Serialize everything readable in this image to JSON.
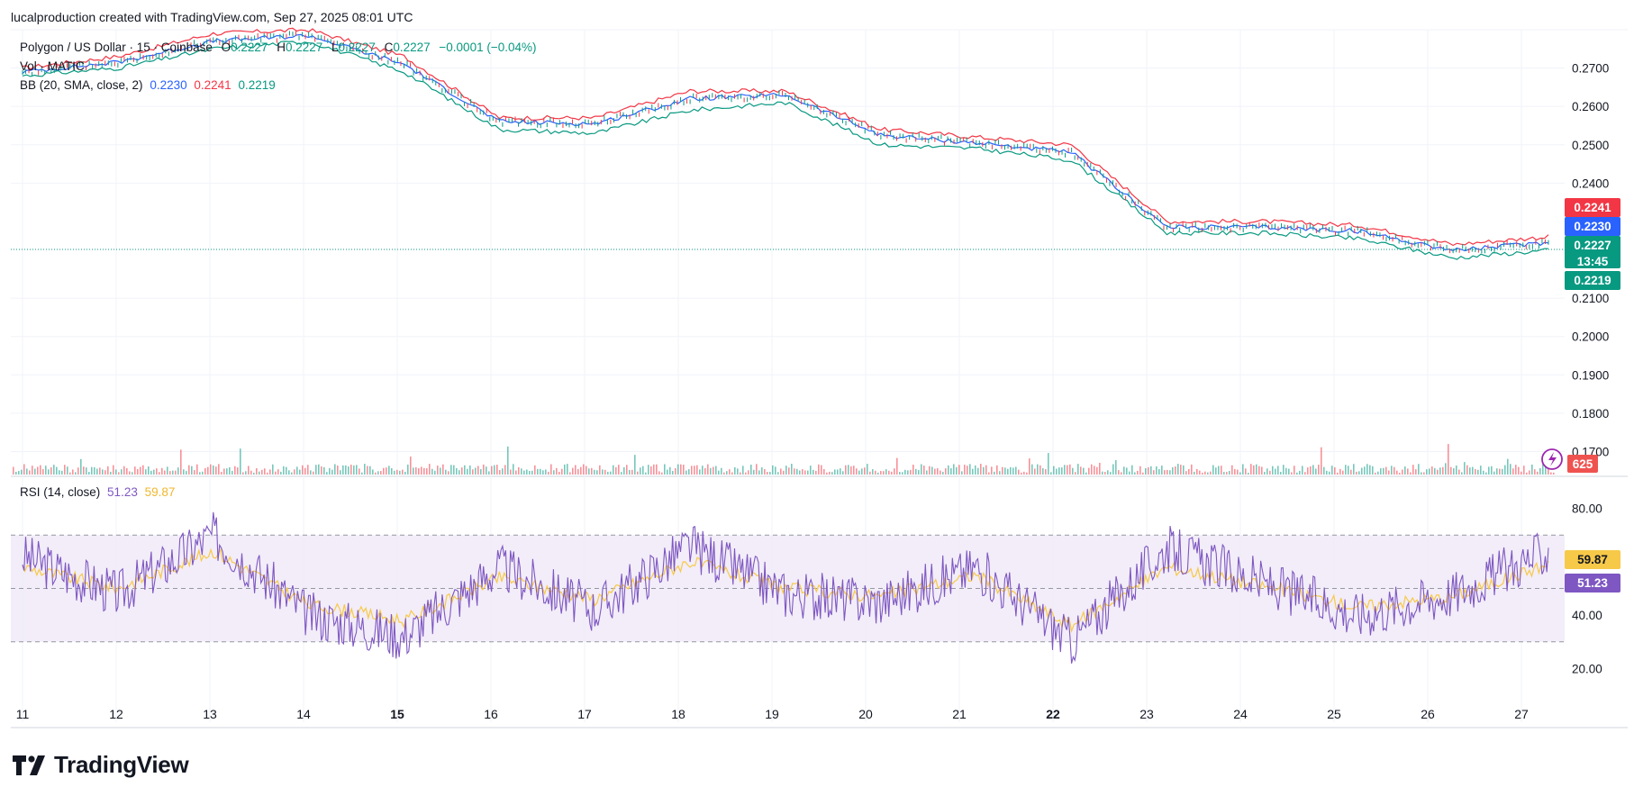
{
  "header": {
    "credit": "lucalproduction created with TradingView.com, Sep 27, 2025 08:01 UTC"
  },
  "legend": {
    "symbol": "Polygon / US Dollar · 15 · Coinbase",
    "o_label": "O",
    "o_value": "0.2227",
    "h_label": "H",
    "h_value": "0.2227",
    "l_label": "L",
    "l_value": "0.2227",
    "c_label": "C",
    "c_value": "0.2227",
    "change": "−0.0001 (−0.04%)",
    "volume": "Vol · MATIC",
    "bb_label": "BB (20, SMA, close, 2)",
    "bb_basis": "0.2230",
    "bb_upper": "0.2241",
    "bb_lower": "0.2219",
    "rsi_label": "RSI (14, close)",
    "rsi_value": "51.23",
    "rsi_ma": "59.87"
  },
  "price_axis": {
    "ticks": [
      "0.2700",
      "0.2600",
      "0.2500",
      "0.2400",
      "0.2100",
      "0.2000",
      "0.1900",
      "0.1800",
      "0.1700"
    ],
    "badges": [
      {
        "text": "0.2241",
        "color": "#f23645"
      },
      {
        "text": "0.2230",
        "color": "#2962ff"
      },
      {
        "text": "0.2227",
        "color": "#089981"
      },
      {
        "text": "13:45",
        "color": "#089981"
      },
      {
        "text": "0.2219",
        "color": "#089981"
      }
    ],
    "volume_badge": {
      "text": "625",
      "color": "#ef5350"
    }
  },
  "rsi_axis": {
    "ticks": [
      "80.00",
      "40.00",
      "20.00"
    ],
    "badges": [
      {
        "text": "59.87",
        "color": "#f7c948"
      },
      {
        "text": "51.23",
        "color": "#7e57c2"
      }
    ]
  },
  "time_axis": {
    "labels": [
      {
        "text": "11",
        "bold": false
      },
      {
        "text": "12",
        "bold": false
      },
      {
        "text": "13",
        "bold": false
      },
      {
        "text": "14",
        "bold": false
      },
      {
        "text": "15",
        "bold": true
      },
      {
        "text": "16",
        "bold": false
      },
      {
        "text": "17",
        "bold": false
      },
      {
        "text": "18",
        "bold": false
      },
      {
        "text": "19",
        "bold": false
      },
      {
        "text": "20",
        "bold": false
      },
      {
        "text": "21",
        "bold": false
      },
      {
        "text": "22",
        "bold": true
      },
      {
        "text": "23",
        "bold": false
      },
      {
        "text": "24",
        "bold": false
      },
      {
        "text": "25",
        "bold": false
      },
      {
        "text": "26",
        "bold": false
      },
      {
        "text": "27",
        "bold": false
      }
    ]
  },
  "logo": {
    "text": "TradingView"
  },
  "colors": {
    "up": "#089981",
    "down": "#f23645",
    "bb_basis": "#2962ff",
    "bb_upper": "#f23645",
    "bb_lower": "#089981",
    "rsi": "#7e57c2",
    "rsi_ma": "#f7c948",
    "rsi_band": "#ede7f6"
  },
  "chart_data": [
    {
      "type": "line",
      "title": "Polygon / US Dollar · 15 · Coinbase",
      "x": [
        "11",
        "12",
        "13",
        "14",
        "15",
        "16",
        "17",
        "18",
        "19",
        "20",
        "21",
        "22",
        "23",
        "24",
        "25",
        "26",
        "27"
      ],
      "series": [
        {
          "name": "BB upper",
          "values": [
            0.27,
            0.273,
            0.279,
            0.28,
            0.273,
            0.257,
            0.257,
            0.264,
            0.264,
            0.254,
            0.252,
            0.25,
            0.23,
            0.23,
            0.229,
            0.224,
            0.226
          ]
        },
        {
          "name": "BB basis",
          "values": [
            0.269,
            0.2715,
            0.277,
            0.2785,
            0.271,
            0.256,
            0.2555,
            0.262,
            0.263,
            0.2525,
            0.2505,
            0.248,
            0.2285,
            0.2285,
            0.2275,
            0.2225,
            0.2245
          ]
        },
        {
          "name": "BB lower",
          "values": [
            0.268,
            0.27,
            0.275,
            0.277,
            0.269,
            0.254,
            0.253,
            0.259,
            0.261,
            0.25,
            0.249,
            0.246,
            0.227,
            0.227,
            0.2255,
            0.2205,
            0.2225
          ]
        }
      ],
      "ylim": [
        0.164,
        0.28
      ]
    },
    {
      "type": "line",
      "title": "RSI (14, close)",
      "x": [
        "11",
        "12",
        "13",
        "14",
        "15",
        "16",
        "17",
        "18",
        "19",
        "20",
        "21",
        "22",
        "23",
        "24",
        "25",
        "26",
        "27"
      ],
      "series": [
        {
          "name": "RSI",
          "values": [
            62,
            48,
            70,
            40,
            32,
            58,
            42,
            66,
            48,
            45,
            58,
            30,
            65,
            52,
            40,
            48,
            64
          ]
        },
        {
          "name": "RSI MA",
          "values": [
            58,
            50,
            64,
            44,
            38,
            54,
            46,
            60,
            50,
            47,
            55,
            36,
            58,
            51,
            43,
            47,
            59
          ]
        }
      ],
      "ylim": [
        10,
        90
      ],
      "bands": [
        70,
        50,
        30
      ]
    }
  ]
}
